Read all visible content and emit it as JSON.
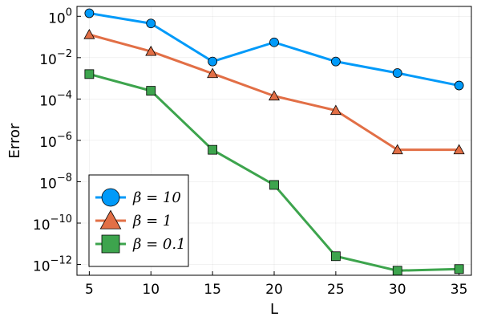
{
  "chart_data": {
    "type": "line",
    "title": "",
    "xlabel": "L",
    "ylabel": "Error",
    "y_scale": "log10",
    "xlim": [
      4,
      36
    ],
    "ylim": [
      3e-13,
      3
    ],
    "grid": true,
    "legend_position": "bottom-left",
    "x": [
      5,
      10,
      15,
      20,
      25,
      30,
      35
    ],
    "x_ticks": [
      5,
      10,
      15,
      20,
      25,
      30,
      35
    ],
    "x_tick_labels": [
      "5",
      "10",
      "15",
      "20",
      "25",
      "30",
      "35"
    ],
    "y_ticks": [
      {
        "base": "10",
        "exp": "0"
      },
      {
        "base": "10",
        "exp": "−2"
      },
      {
        "base": "10",
        "exp": "−4"
      },
      {
        "base": "10",
        "exp": "−6"
      },
      {
        "base": "10",
        "exp": "−8"
      },
      {
        "base": "10",
        "exp": "−10"
      },
      {
        "base": "10",
        "exp": "−12"
      }
    ],
    "series": [
      {
        "name": "β = 10",
        "color": "#009af9",
        "marker": "circle",
        "values": [
          1.4,
          0.45,
          0.0065,
          0.055,
          0.0065,
          0.0018,
          0.00045
        ]
      },
      {
        "name": "β = 1",
        "color": "#e26f46",
        "marker": "triangle",
        "values": [
          0.13,
          0.02,
          0.0017,
          0.00014,
          2.8e-05,
          3.5e-07,
          3.5e-07
        ]
      },
      {
        "name": "β = 0.1",
        "color": "#3da44d",
        "marker": "square",
        "values": [
          0.0016,
          0.00025,
          3.5e-07,
          7e-09,
          2.5e-12,
          5e-13,
          6e-13
        ]
      }
    ]
  }
}
